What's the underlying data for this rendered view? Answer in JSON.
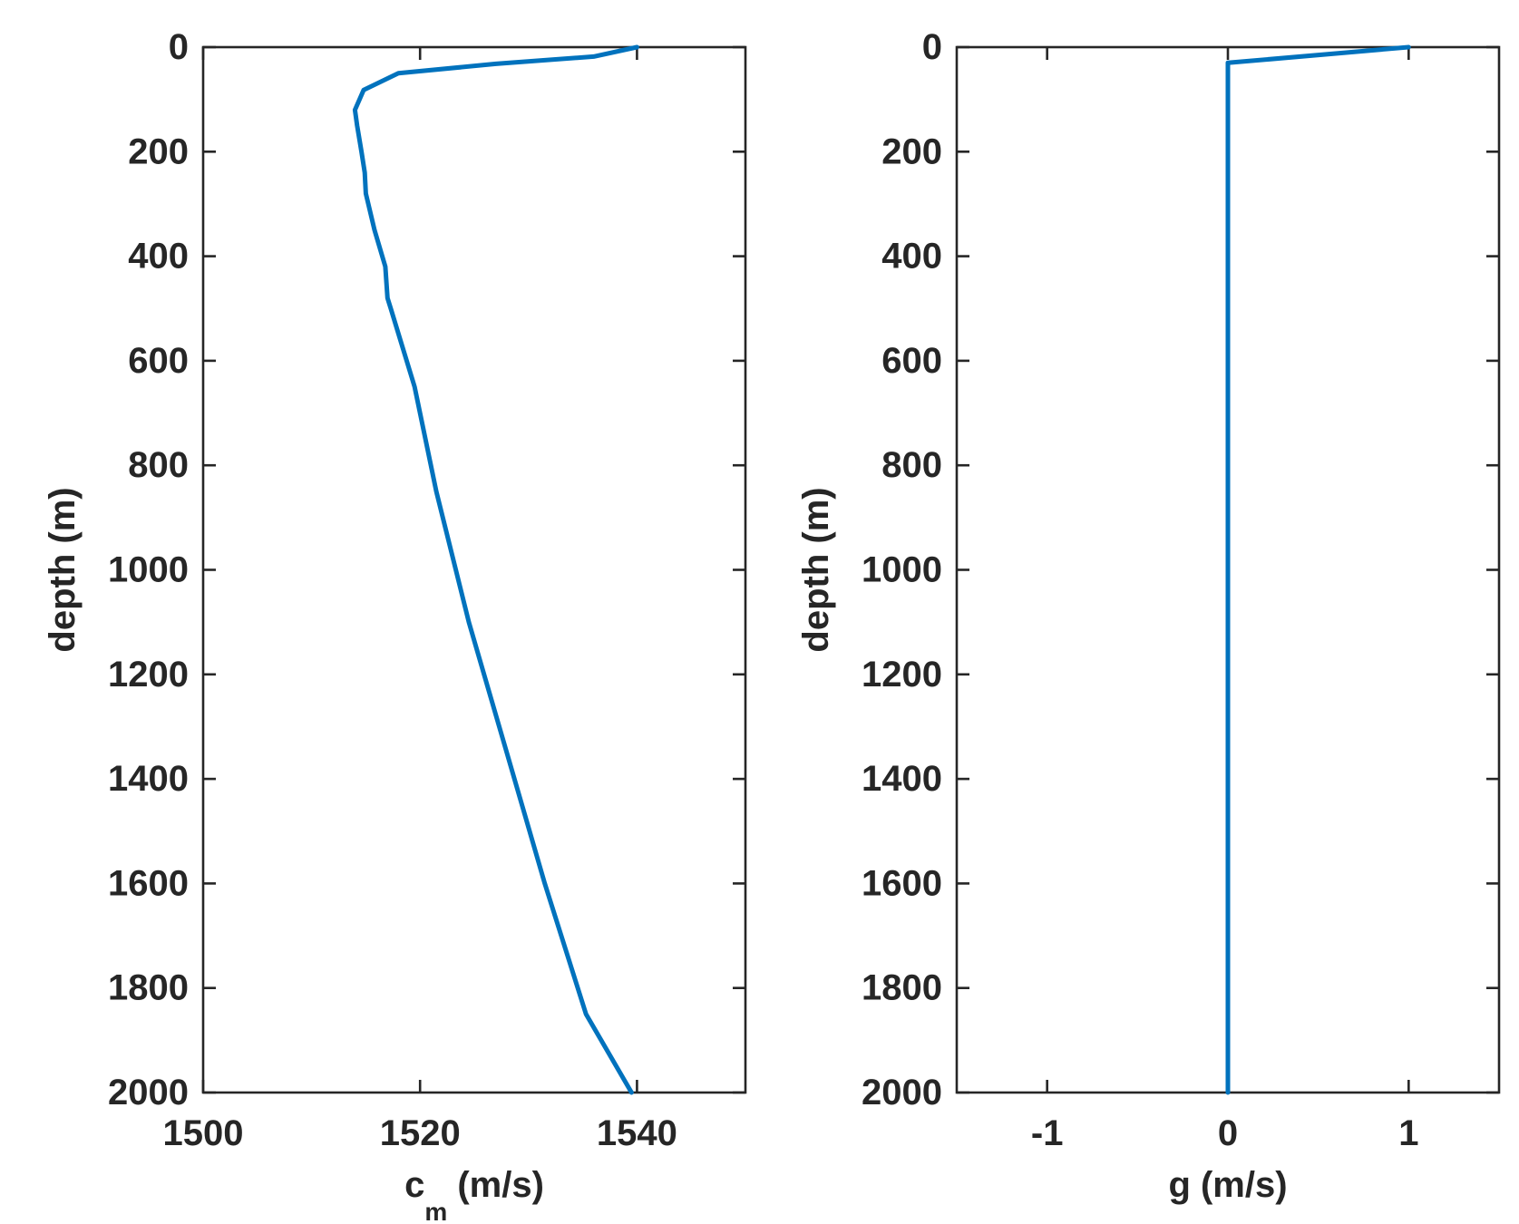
{
  "colors": {
    "series": "#0072BD",
    "axes": "#262626"
  },
  "chart_data": [
    {
      "type": "line",
      "orientation": "depth-profile",
      "xlabel": "c",
      "xlabel_subscript": "m",
      "xlabel_units": " (m/s)",
      "ylabel": "depth (m)",
      "xlim": [
        1500,
        1550
      ],
      "ylim": [
        0,
        2000
      ],
      "y_reversed": true,
      "xticks": [
        1500,
        1520,
        1540
      ],
      "xtick_labels": [
        "1500",
        "1520",
        "1540"
      ],
      "yticks": [
        0,
        200,
        400,
        600,
        800,
        1000,
        1200,
        1400,
        1600,
        1800,
        2000
      ],
      "ytick_labels": [
        "0",
        "200",
        "400",
        "600",
        "800",
        "1000",
        "1200",
        "1400",
        "1600",
        "1800",
        "2000"
      ],
      "grid": false,
      "series": [
        {
          "x": [
            1540.0,
            1536.0,
            1527.0,
            1518.0,
            1514.8,
            1514.0,
            1514.2,
            1514.6,
            1514.9,
            1515.0,
            1515.8,
            1516.8,
            1517.0,
            1517.3,
            1519.5,
            1521.5,
            1524.5,
            1528.0,
            1531.5,
            1535.3,
            1539.5
          ],
          "y": [
            0,
            18,
            32,
            50,
            82,
            120,
            150,
            200,
            240,
            280,
            350,
            420,
            480,
            500,
            650,
            850,
            1100,
            1350,
            1600,
            1850,
            2000
          ]
        }
      ]
    },
    {
      "type": "line",
      "orientation": "depth-profile",
      "xlabel": "g",
      "xlabel_units": " (m/s)",
      "ylabel": "depth (m)",
      "xlim": [
        -1.5,
        1.5
      ],
      "ylim": [
        0,
        2000
      ],
      "y_reversed": true,
      "xticks": [
        -1,
        0,
        1
      ],
      "xtick_labels": [
        "-1",
        "0",
        "1"
      ],
      "yticks": [
        0,
        200,
        400,
        600,
        800,
        1000,
        1200,
        1400,
        1600,
        1800,
        2000
      ],
      "ytick_labels": [
        "0",
        "200",
        "400",
        "600",
        "800",
        "1000",
        "1200",
        "1400",
        "1600",
        "1800",
        "2000"
      ],
      "grid": false,
      "series": [
        {
          "x": [
            1.0,
            0.0,
            0.0
          ],
          "y": [
            0,
            30,
            2000
          ]
        }
      ]
    }
  ]
}
